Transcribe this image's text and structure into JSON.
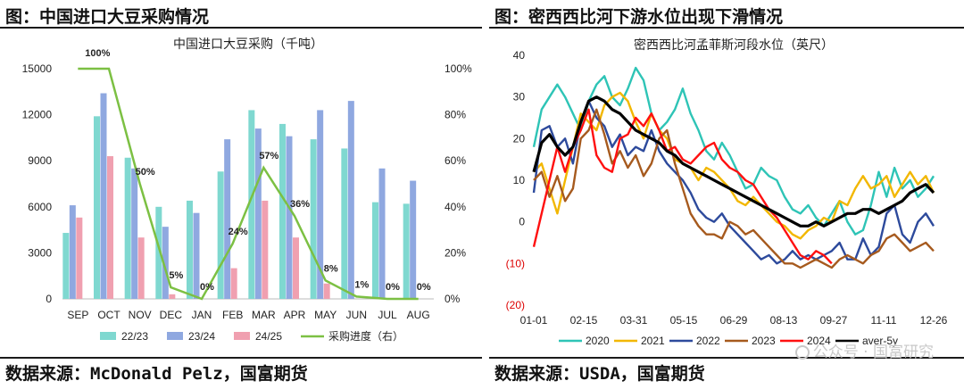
{
  "left": {
    "panel_title": "图：中国进口大豆采购情况",
    "source": "数据来源：McDonald Pelz，国富期货"
  },
  "right": {
    "panel_title": "图：密西西比河下游水位出现下滑情况",
    "source": "数据来源：USDA，国富期货",
    "watermark": "公众号 · 国富研究"
  },
  "chart_data": [
    {
      "type": "bar",
      "title": "中国进口大豆采购（千吨）",
      "categories": [
        "SEP",
        "OCT",
        "NOV",
        "DEC",
        "JAN",
        "FEB",
        "MAR",
        "APR",
        "MAY",
        "JUN",
        "JUL",
        "AUG"
      ],
      "ylim": [
        0,
        15000
      ],
      "yticks": [
        "0",
        "3000",
        "6000",
        "9000",
        "12000",
        "15000"
      ],
      "y2lim": [
        0,
        100
      ],
      "y2ticks": [
        "0%",
        "20%",
        "40%",
        "60%",
        "80%",
        "100%"
      ],
      "series": [
        {
          "name": "22/23",
          "color": "#7fd8d0",
          "values": [
            4300,
            11900,
            9200,
            6000,
            6400,
            8300,
            12300,
            11400,
            10400,
            9800,
            6300,
            6200
          ]
        },
        {
          "name": "23/24",
          "color": "#8fa8e0",
          "values": [
            6100,
            13400,
            8500,
            4700,
            5600,
            10400,
            11100,
            10600,
            12300,
            12900,
            8500,
            7700
          ]
        },
        {
          "name": "24/25",
          "color": "#f0a0b0",
          "values": [
            5300,
            9300,
            4000,
            300,
            null,
            2000,
            6400,
            4000,
            1000,
            null,
            null,
            null
          ]
        },
        {
          "name": "采购进度（右）",
          "color": "#7cc043",
          "axis": "right",
          "values": [
            100,
            100,
            50,
            5,
            0,
            24,
            57,
            36,
            8,
            1,
            0,
            0
          ]
        }
      ],
      "data_labels": [
        "100%",
        "",
        "50%",
        "5%",
        "0%",
        "24%",
        "57%",
        "36%",
        "8%",
        "1%",
        "0%",
        "0%"
      ],
      "legend_position": "bottom"
    },
    {
      "type": "line",
      "title": "密西西比河孟菲斯河段水位（英尺）",
      "xticks": [
        "01-01",
        "02-15",
        "03-31",
        "05-15",
        "06-29",
        "08-13",
        "09-27",
        "11-11",
        "12-26"
      ],
      "ylim": [
        -20,
        40
      ],
      "yticks": [
        "(20)",
        "(10)",
        "0",
        "10",
        "20",
        "30",
        "40"
      ],
      "negative_tick_color": "#dd0000",
      "legend_position": "bottom",
      "series": [
        {
          "name": "2020",
          "color": "#2ec4b6",
          "values": [
            18,
            27,
            30,
            33,
            30,
            26,
            22,
            29,
            33,
            35,
            30,
            28,
            32,
            37,
            34,
            26,
            22,
            24,
            27,
            32,
            26,
            22,
            17,
            15,
            19,
            16,
            12,
            8,
            9,
            13,
            11,
            10,
            6,
            3,
            2,
            4,
            1,
            -1,
            2,
            5,
            0,
            -3,
            -2,
            4,
            12,
            6,
            13,
            8,
            10,
            6,
            8,
            11
          ]
        },
        {
          "name": "2021",
          "color": "#f2b700",
          "values": [
            12,
            14,
            8,
            2,
            10,
            18,
            26,
            24,
            22,
            28,
            30,
            31,
            29,
            24,
            20,
            26,
            22,
            20,
            15,
            14,
            13,
            10,
            13,
            12,
            10,
            8,
            5,
            4,
            6,
            4,
            2,
            0,
            -1,
            -3,
            -4,
            -2,
            -1,
            1,
            0,
            5,
            4,
            8,
            11,
            8,
            9,
            11,
            6,
            9,
            12,
            9,
            11,
            7
          ]
        },
        {
          "name": "2022",
          "color": "#2d4a9c",
          "values": [
            7,
            22,
            23,
            18,
            20,
            14,
            24,
            29,
            25,
            23,
            18,
            21,
            16,
            18,
            17,
            22,
            17,
            14,
            12,
            10,
            7,
            3,
            1,
            0,
            2,
            -1,
            -3,
            -5,
            -7,
            -9,
            -8,
            -10,
            -9,
            -7,
            -9,
            -8,
            -9,
            -8,
            -7,
            -5,
            -9,
            -9,
            -4,
            -8,
            -6,
            2,
            4,
            -3,
            -5,
            0,
            2,
            -1
          ]
        },
        {
          "name": "2023",
          "color": "#a65a1e",
          "values": [
            10,
            12,
            6,
            11,
            5,
            8,
            20,
            22,
            27,
            21,
            14,
            17,
            13,
            16,
            11,
            14,
            20,
            22,
            14,
            8,
            2,
            -1,
            -3,
            -3,
            -4,
            0,
            -1,
            -3,
            -2,
            -4,
            -6,
            -8,
            -10,
            -10,
            -11,
            -10,
            -9,
            -10,
            -11,
            -9,
            -8,
            -9,
            -10,
            -8,
            -7,
            -4,
            -3,
            -5,
            -7,
            -6,
            -5,
            -7
          ]
        },
        {
          "name": "2024",
          "color": "#ff1010",
          "values": [
            -6,
            2,
            10,
            18,
            12,
            18,
            22,
            27,
            16,
            13,
            12,
            20,
            21,
            25,
            23,
            26,
            22,
            17,
            18,
            15,
            14,
            16,
            18,
            19,
            15,
            13,
            12,
            10,
            9,
            6,
            3,
            1,
            -2,
            -5,
            -8,
            -9,
            -7,
            -8,
            -10,
            null,
            null,
            null,
            null,
            null,
            null,
            null,
            null,
            null,
            null,
            null,
            null,
            null
          ]
        },
        {
          "name": "aver-5y",
          "color": "#000000",
          "values": [
            12,
            19,
            21,
            18,
            16,
            18,
            24,
            29,
            30,
            29,
            27,
            26,
            24,
            22,
            21,
            20,
            19,
            17,
            16,
            14,
            13,
            12,
            11,
            10,
            9,
            8,
            7,
            6,
            5,
            4,
            3,
            2,
            1,
            0,
            -1,
            -1,
            0,
            -1,
            0,
            1,
            2,
            2,
            3,
            3,
            2,
            3,
            4,
            5,
            7,
            8,
            9,
            7
          ]
        }
      ]
    }
  ]
}
